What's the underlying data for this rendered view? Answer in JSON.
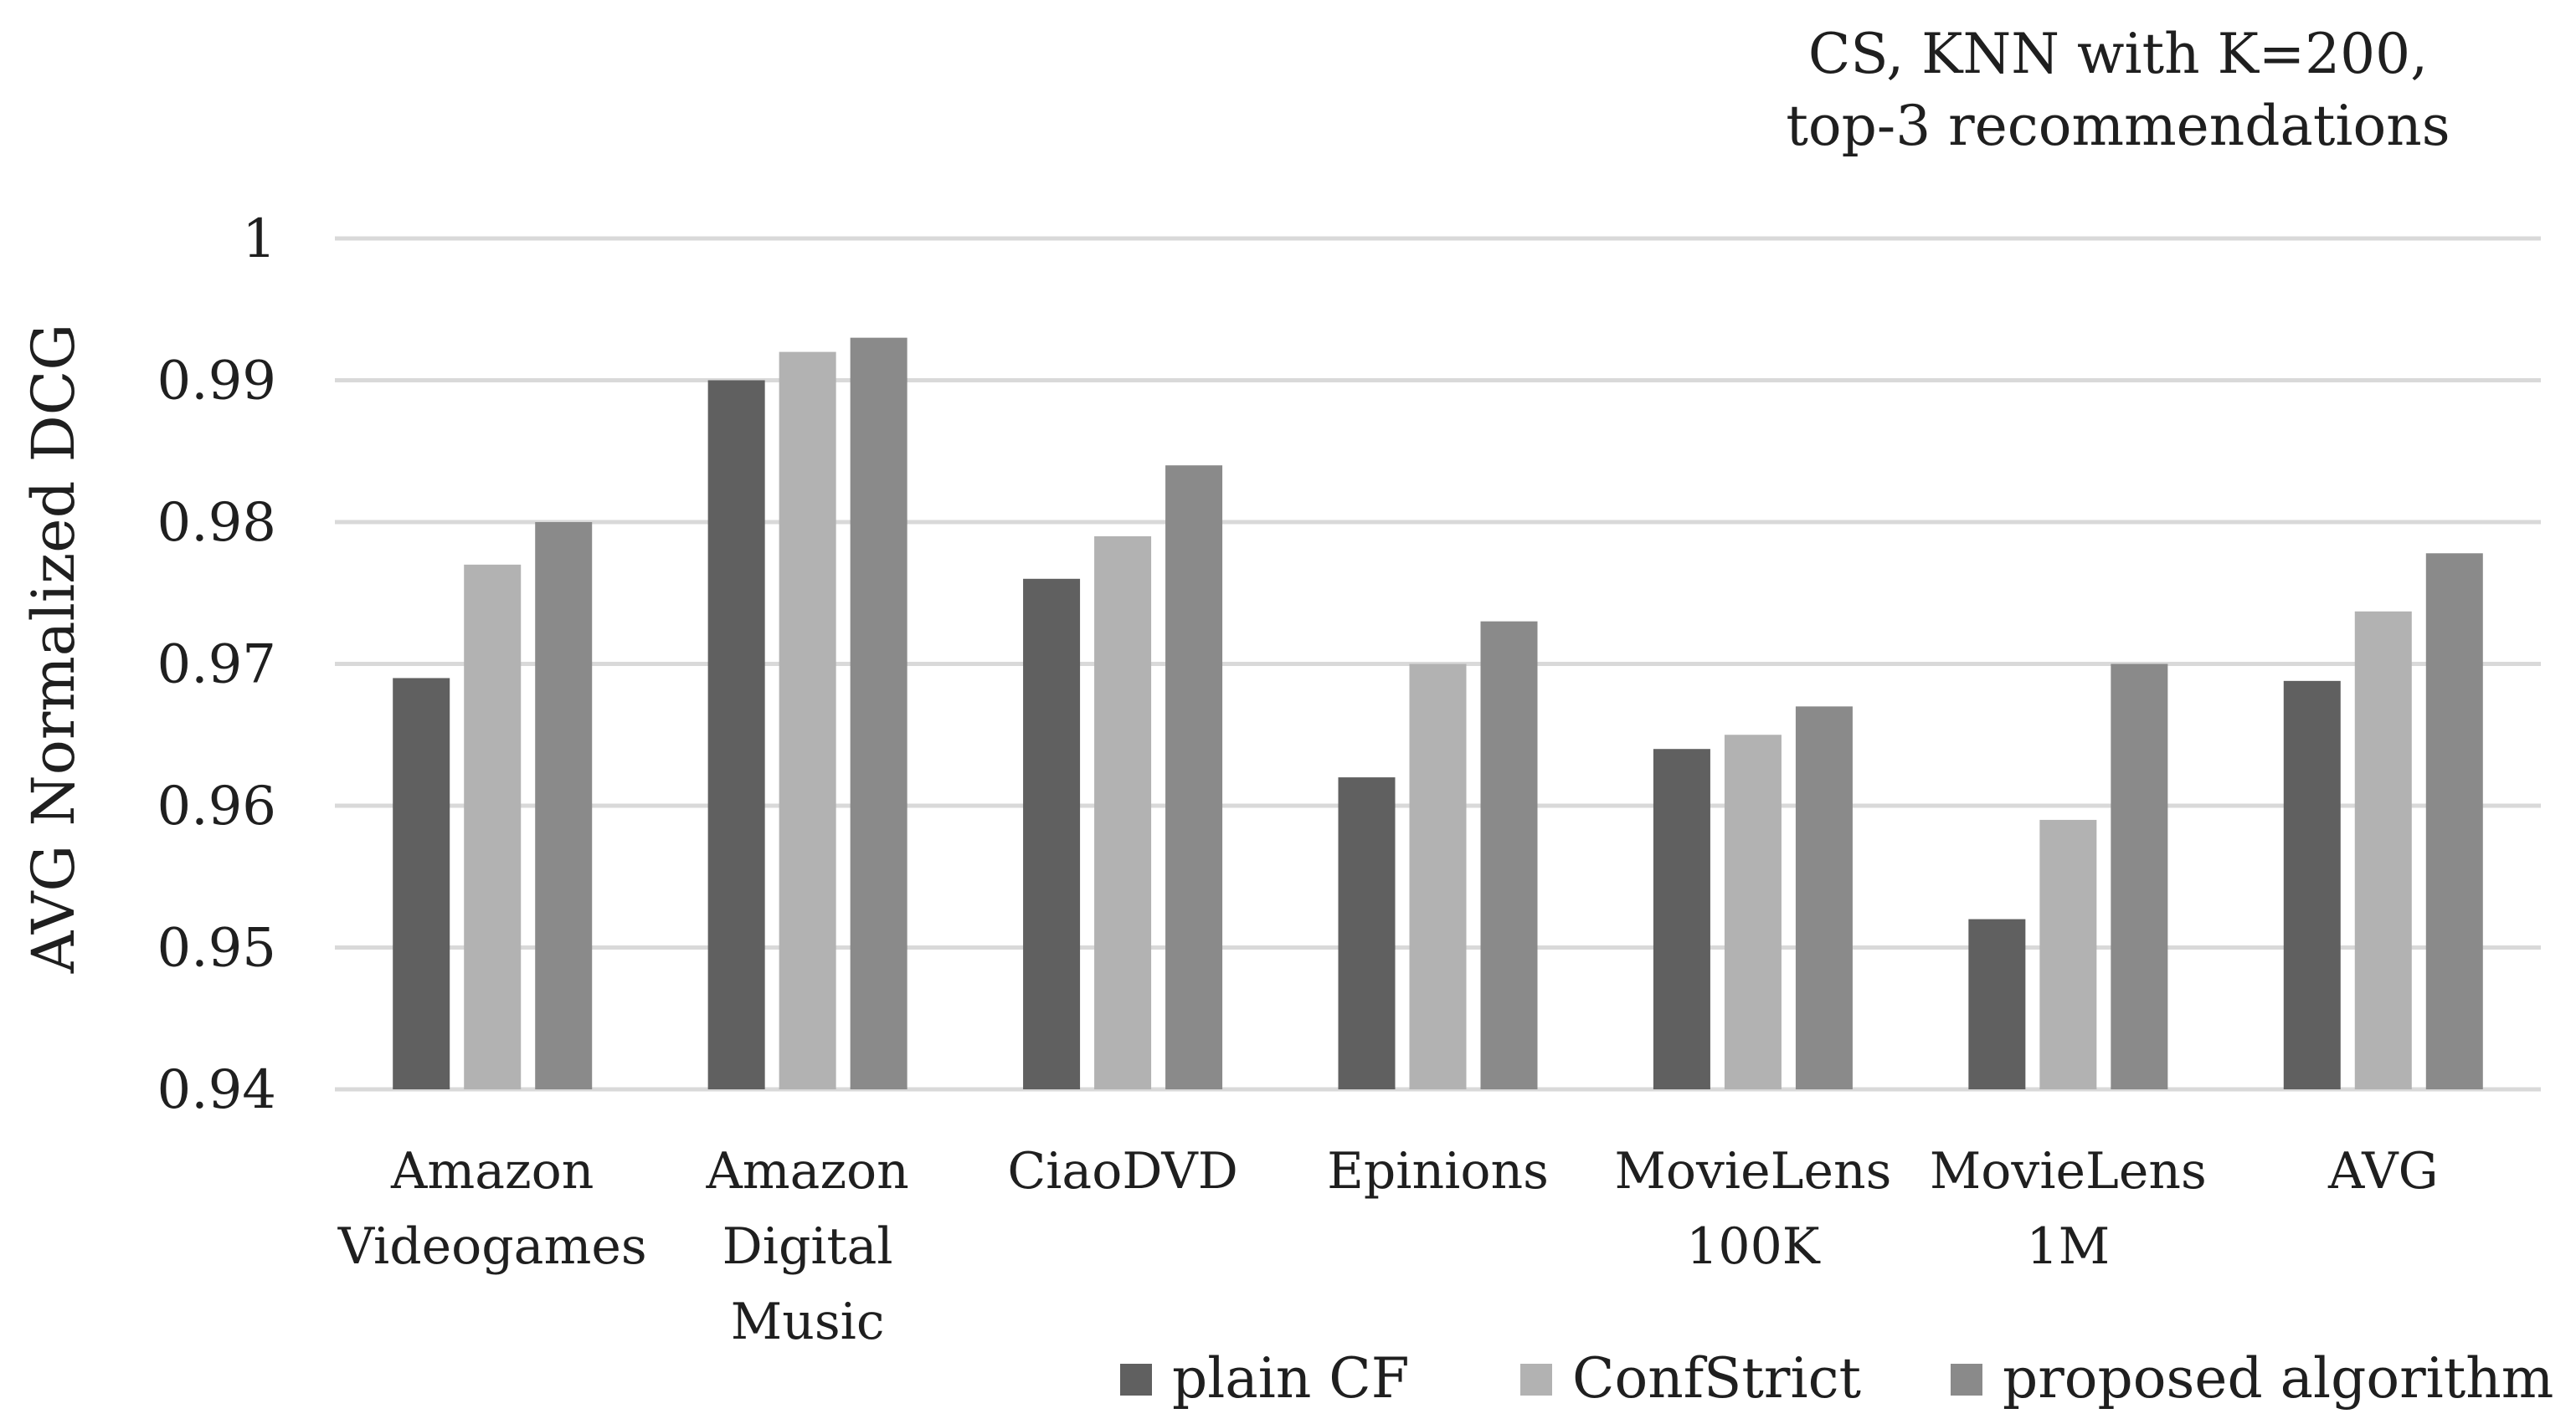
{
  "chart_data": {
    "type": "bar",
    "title": [
      "CS, KNN with K=200,",
      "top-3 recommendations"
    ],
    "xlabel": "",
    "ylabel": "AVG Normalized DCG",
    "ylim": [
      0.94,
      1.0
    ],
    "yticks": [
      "0.94",
      "0.95",
      "0.96",
      "0.97",
      "0.98",
      "0.99",
      "1"
    ],
    "grid": true,
    "legend_position": "bottom-right",
    "categories": [
      [
        "Amazon",
        "Videogames"
      ],
      [
        "Amazon",
        "Digital",
        "Music"
      ],
      [
        "CiaoDVD"
      ],
      [
        "Epinions"
      ],
      [
        "MovieLens",
        "100K"
      ],
      [
        "MovieLens",
        "1M"
      ],
      [
        "AVG"
      ]
    ],
    "series": [
      {
        "name": "plain CF",
        "color": "#606060",
        "values": [
          0.969,
          0.99,
          0.976,
          0.962,
          0.964,
          0.952,
          0.9688
        ]
      },
      {
        "name": "ConfStrict",
        "color": "#b2b2b2",
        "values": [
          0.977,
          0.992,
          0.979,
          0.97,
          0.965,
          0.959,
          0.9737
        ]
      },
      {
        "name": "proposed algorithm",
        "color": "#8a8a8a",
        "values": [
          0.98,
          0.993,
          0.984,
          0.973,
          0.967,
          0.97,
          0.9778
        ]
      }
    ]
  }
}
